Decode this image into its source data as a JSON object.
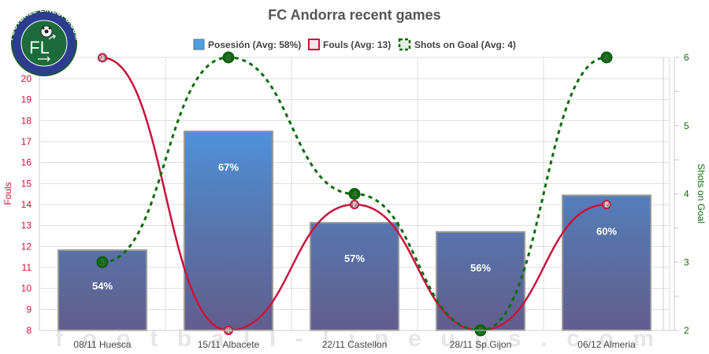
{
  "chart_data": {
    "type": "bar",
    "title": "FC Andorra recent games",
    "categories": [
      "08/11 Huesca",
      "15/11 Albacete",
      "22/11 Castellon",
      "28/11 Sp.Gijon",
      "06/12 Almeria"
    ],
    "series": [
      {
        "name": "Posesión",
        "legend": "Posesión (Avg: 58%)",
        "type": "bar",
        "axis": "none",
        "values": [
          54,
          67,
          57,
          56,
          60
        ],
        "labels": [
          "54%",
          "67%",
          "57%",
          "56%",
          "60%"
        ],
        "color": "#4f8fd6"
      },
      {
        "name": "Fouls",
        "legend": "Fouls (Avg: 13)",
        "type": "line",
        "axis": "left",
        "values": [
          21,
          8,
          14,
          8,
          14
        ],
        "color": "#c8143c"
      },
      {
        "name": "Shots on Goal",
        "legend": "Shots on Goal (Avg: 4)",
        "type": "line-dashed",
        "axis": "right",
        "values": [
          3,
          6,
          4,
          2,
          6
        ],
        "color": "#0d6b0d"
      }
    ],
    "ylabel_left": "Fouls",
    "ylabel_right": "Shots on Goal",
    "ylim_left": [
      8,
      21
    ],
    "ylim_right": [
      2,
      6
    ],
    "yticks_left": [
      8,
      9,
      10,
      11,
      12,
      13,
      14,
      15,
      16,
      17,
      18,
      19,
      20
    ],
    "yticks_right": [
      2,
      3,
      4,
      5,
      6
    ],
    "grid": true,
    "legend_position": "top"
  },
  "header": {
    "title": "FC Andorra recent games",
    "logo_text": "FOOTBALL-LINEUPS.COM",
    "logo_letters": "FL"
  },
  "legend": [
    {
      "label": "Posesión (Avg: 58%)",
      "icon": "bar-swatch-icon"
    },
    {
      "label": "Fouls (Avg: 13)",
      "icon": "line-swatch-icon"
    },
    {
      "label": "Shots on Goal (Avg: 4)",
      "icon": "dashed-line-swatch-icon"
    }
  ],
  "axes": {
    "left_title": "Fouls",
    "right_title": "Shots on Goal"
  },
  "watermark": "f o o t b a l l - l i n e u p s . c o m",
  "colors": {
    "fouls": "#c8143c",
    "shots": "#0d6b0d",
    "bar_top": "#55a6e6",
    "bar_bottom": "#5d5f8e",
    "grid": "#dddddd"
  }
}
